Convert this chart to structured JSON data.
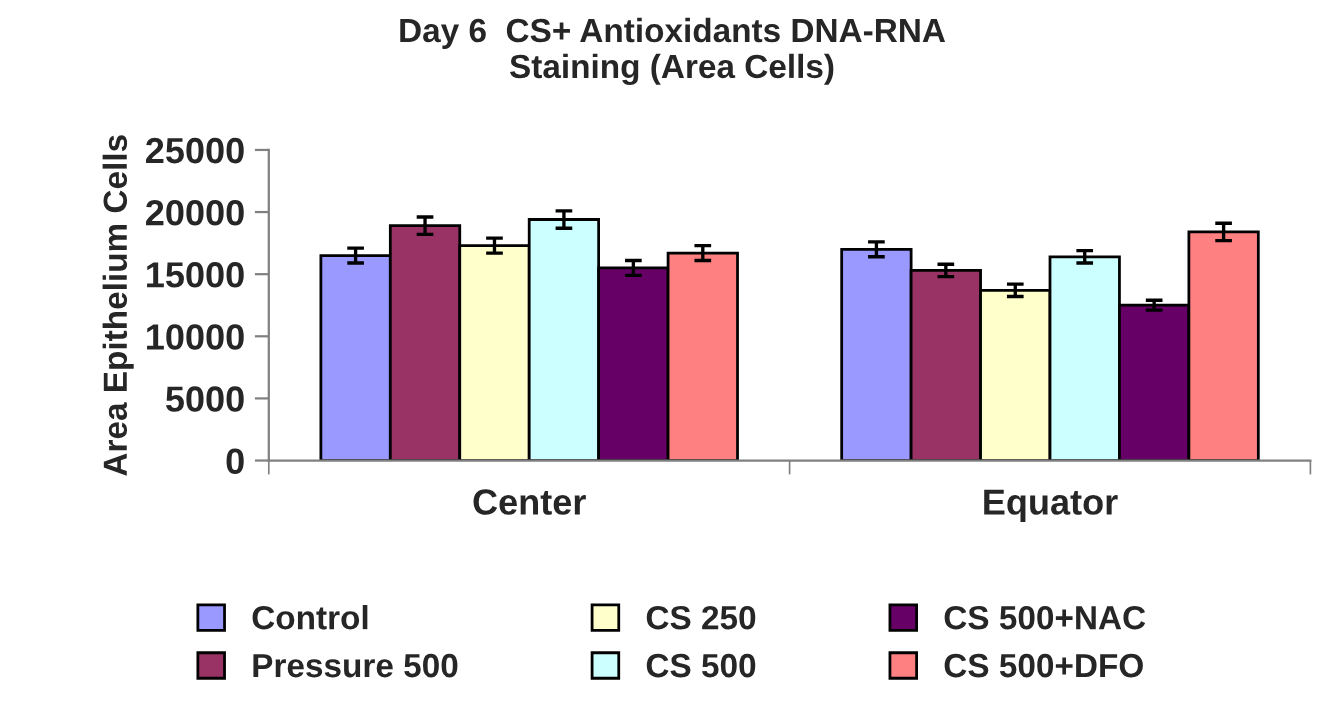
{
  "chart_data": {
    "type": "bar",
    "title": "Day 6  CS+ Antioxidants DNA-RNA\nStaining (Area Cells)",
    "ylabel": "Area Epithelium Cells",
    "categories": [
      "Center",
      "Equator"
    ],
    "series": [
      {
        "name": "Control",
        "color": "#9999ff",
        "values": [
          16500,
          17000
        ],
        "errors": [
          600,
          600
        ]
      },
      {
        "name": "Pressure 500",
        "color": "#993366",
        "values": [
          18900,
          15300
        ],
        "errors": [
          700,
          500
        ]
      },
      {
        "name": "CS 250",
        "color": "#ffffcc",
        "values": [
          17300,
          13700
        ],
        "errors": [
          600,
          500
        ]
      },
      {
        "name": "CS 500",
        "color": "#ccffff",
        "values": [
          19400,
          16400
        ],
        "errors": [
          700,
          500
        ]
      },
      {
        "name": "CS 500+NAC",
        "color": "#660066",
        "values": [
          15500,
          12500
        ],
        "errors": [
          600,
          400
        ]
      },
      {
        "name": "CS 500+DFO",
        "color": "#ff8080",
        "values": [
          16700,
          18400
        ],
        "errors": [
          600,
          700
        ]
      }
    ],
    "ylim": [
      0,
      25000
    ],
    "yticks": [
      0,
      5000,
      10000,
      15000,
      20000,
      25000
    ],
    "grid": false,
    "legend": "bottom"
  }
}
